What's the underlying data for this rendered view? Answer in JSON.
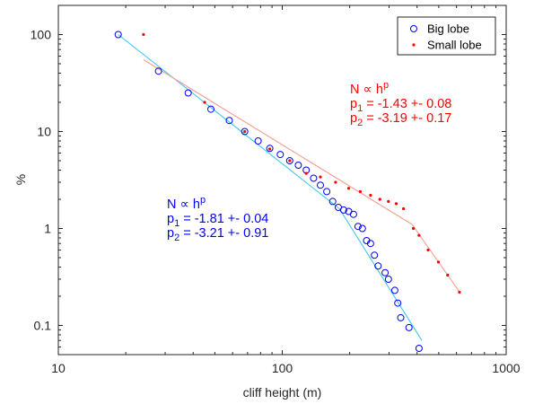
{
  "chart_data": {
    "type": "scatter",
    "xscale": "log",
    "yscale": "log",
    "xlim": [
      10,
      1000
    ],
    "ylim": [
      0.05,
      200
    ],
    "xlabel": "cliff height (m)",
    "ylabel": "%",
    "x_ticks": [
      10,
      100,
      1000
    ],
    "x_tick_labels": [
      "10",
      "100",
      "1000"
    ],
    "y_ticks": [
      0.1,
      1,
      10,
      100
    ],
    "y_tick_labels": [
      "0.1",
      "1",
      "10",
      "100"
    ],
    "grid": false,
    "legend_position": "top-right",
    "series": [
      {
        "name": "Big lobe",
        "marker": "circle-open",
        "color": "#0000ff",
        "x": [
          18.5,
          28,
          38,
          48,
          58,
          68,
          78,
          88,
          98,
          108,
          118,
          128,
          138,
          148,
          158,
          168,
          178,
          188,
          198,
          208,
          218,
          228,
          238,
          248,
          258,
          268,
          288,
          298,
          318,
          328,
          338,
          368,
          408
        ],
        "y": [
          100,
          42,
          25,
          17,
          13,
          10,
          8,
          6.7,
          5.8,
          5.0,
          4.5,
          4.0,
          3.3,
          2.8,
          2.4,
          1.9,
          1.65,
          1.55,
          1.5,
          1.4,
          1.05,
          1.0,
          0.75,
          0.7,
          0.53,
          0.41,
          0.35,
          0.3,
          0.23,
          0.17,
          0.12,
          0.095,
          0.058
        ]
      },
      {
        "name": "Small lobe",
        "marker": "dot",
        "color": "#ff0000",
        "x": [
          24,
          45,
          68,
          88,
          108,
          128,
          148,
          173,
          198,
          223,
          248,
          273,
          298,
          323,
          348,
          385,
          408,
          448,
          498,
          548,
          618
        ],
        "y": [
          100,
          20,
          10,
          6.6,
          5.0,
          3.7,
          3.4,
          3.0,
          2.6,
          2.4,
          2.2,
          2.0,
          1.9,
          1.8,
          1.6,
          1.0,
          0.85,
          0.6,
          0.45,
          0.33,
          0.22
        ]
      }
    ],
    "fit_lines": [
      {
        "color": "#40c8f0",
        "points": [
          [
            18.5,
            100
          ],
          [
            180,
            1.6
          ]
        ]
      },
      {
        "color": "#40c8f0",
        "points": [
          [
            180,
            1.6
          ],
          [
            420,
            0.07
          ]
        ]
      },
      {
        "color": "#f4a090",
        "points": [
          [
            24,
            55
          ],
          [
            380,
            1.1
          ]
        ]
      },
      {
        "color": "#f4a090",
        "points": [
          [
            380,
            1.1
          ],
          [
            620,
            0.22
          ]
        ]
      }
    ],
    "annotations": [
      {
        "color": "#0000ff",
        "lines": [
          "N ∝ h",
          "p",
          "1",
          " = -1.81 +- 0.04",
          "2",
          " = -3.21 +- 0.91"
        ]
      },
      {
        "color": "#ff0000",
        "lines": [
          "N ∝ h",
          "p",
          "1",
          " = -1.43 +- 0.08",
          "2",
          " = -3.19 +- 0.17"
        ]
      }
    ]
  }
}
